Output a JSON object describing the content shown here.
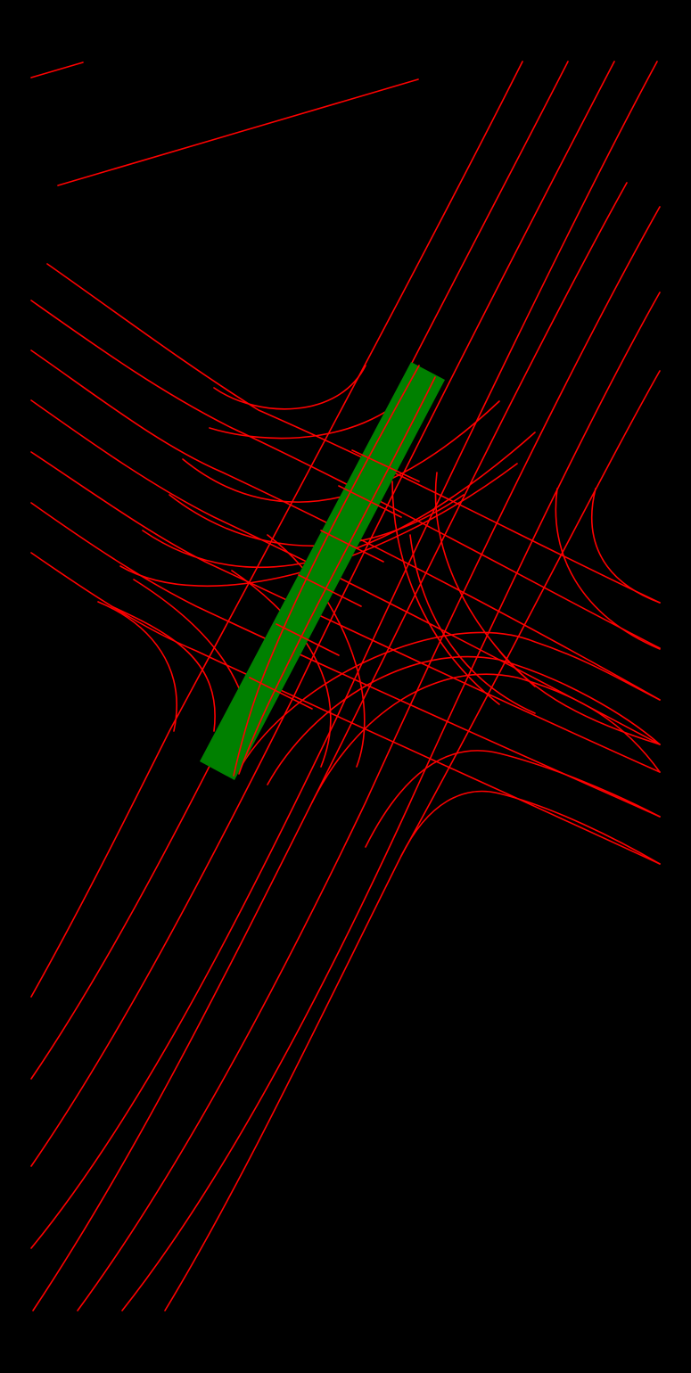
{
  "diagram": {
    "background_color": "#000000",
    "lane_color": "#ff0000",
    "highlight_color": "#008000"
  }
}
